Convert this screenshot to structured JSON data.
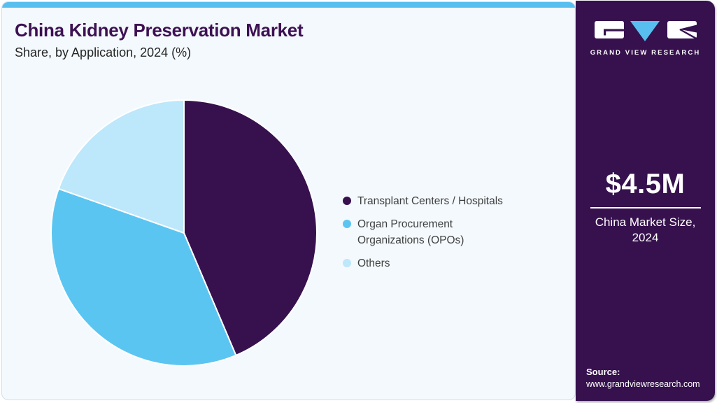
{
  "header": {
    "title": "China Kidney Preservation Market",
    "subtitle": "Share, by Application, 2024 (%)"
  },
  "chart_data": {
    "type": "pie",
    "title": "China Kidney Preservation Market Share, by Application, 2024 (%)",
    "categories": [
      "Transplant Centers / Hospitals",
      "Organ Procurement Organizations (OPOs)",
      "Others"
    ],
    "values": [
      43.6,
      36.8,
      19.6
    ],
    "unit": "%",
    "colors": [
      "#36114E",
      "#5BC5F2",
      "#BDE7FA"
    ],
    "start_angle_deg": 0,
    "direction": "clockwise",
    "legend_position": "right",
    "data_labels_shown": false
  },
  "sidebar": {
    "logo": {
      "text": "GRAND VIEW RESEARCH"
    },
    "market_size": {
      "value": "$4.5M",
      "label_line1": "China Market Size,",
      "label_line2": "2024"
    },
    "source": {
      "label": "Source:",
      "url": "www.grandviewresearch.com"
    }
  },
  "theme": {
    "brand_purple": "#36114E",
    "accent_blue": "#58BEEF",
    "panel_bg": "#F4F9FD",
    "panel_border": "#D6DEE6",
    "title_color": "#3D1152",
    "subtitle_color": "#262626",
    "legend_text": "#3F3F3F",
    "white": "#FFFFFF"
  }
}
